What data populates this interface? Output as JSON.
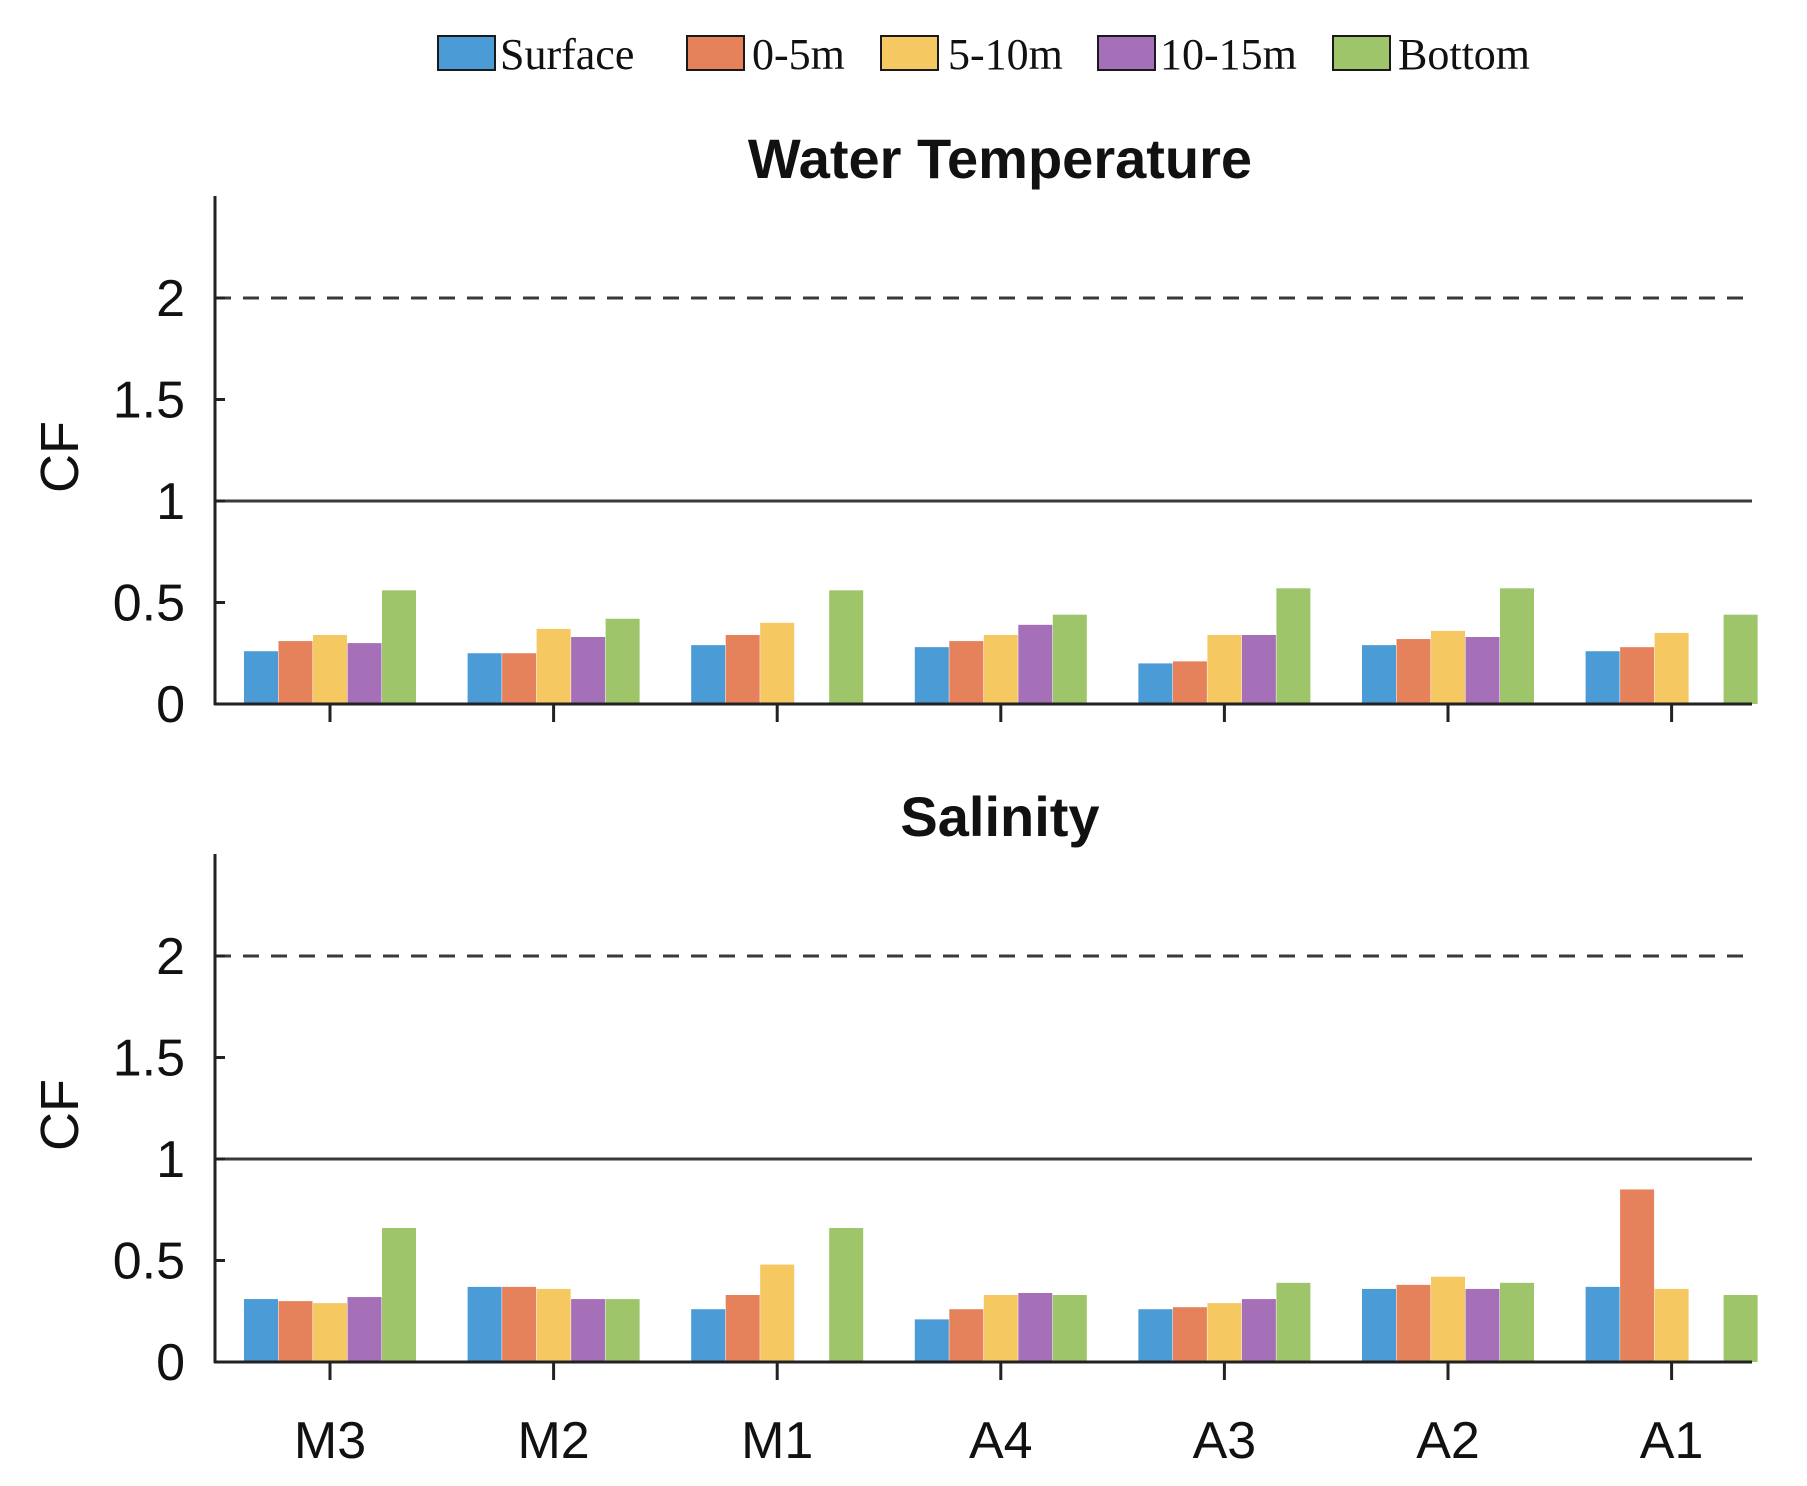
{
  "legend": [
    {
      "name": "Surface",
      "color": "#4a9bd6"
    },
    {
      "name": "0-5m",
      "color": "#e5825c"
    },
    {
      "name": "5-10m",
      "color": "#f5c862"
    },
    {
      "name": "10-15m",
      "color": "#a570b8"
    },
    {
      "name": "Bottom",
      "color": "#9fc56a"
    }
  ],
  "chart_data": [
    {
      "type": "bar",
      "title": "Water Temperature",
      "xlabel": "",
      "ylabel": "CF",
      "ylim": [
        0,
        2.5
      ],
      "yticks": [
        "0",
        "0.5",
        "1",
        "1.5",
        "2"
      ],
      "ytick_values": [
        0,
        0.5,
        1,
        1.5,
        2
      ],
      "reference_lines": [
        {
          "y": 1,
          "style": "solid"
        },
        {
          "y": 2,
          "style": "dashed"
        }
      ],
      "categories": [
        "M3",
        "M2",
        "M1",
        "A4",
        "A3",
        "A2",
        "A1"
      ],
      "show_tick_labels": false,
      "series": [
        {
          "name": "Surface",
          "values": [
            0.26,
            0.25,
            0.29,
            0.28,
            0.2,
            0.29,
            0.26
          ]
        },
        {
          "name": "0-5m",
          "values": [
            0.31,
            0.25,
            0.34,
            0.31,
            0.21,
            0.32,
            0.28
          ]
        },
        {
          "name": "5-10m",
          "values": [
            0.34,
            0.37,
            0.4,
            0.34,
            0.34,
            0.36,
            0.35
          ]
        },
        {
          "name": "10-15m",
          "values": [
            0.3,
            0.33,
            null,
            0.39,
            0.34,
            0.33,
            null
          ]
        },
        {
          "name": "Bottom",
          "values": [
            0.56,
            0.42,
            0.56,
            0.44,
            0.57,
            0.57,
            0.44
          ]
        }
      ]
    },
    {
      "type": "bar",
      "title": "Salinity",
      "xlabel": "",
      "ylabel": "CF",
      "ylim": [
        0,
        2.5
      ],
      "yticks": [
        "0",
        "0.5",
        "1",
        "1.5",
        "2"
      ],
      "ytick_values": [
        0,
        0.5,
        1,
        1.5,
        2
      ],
      "reference_lines": [
        {
          "y": 1,
          "style": "solid"
        },
        {
          "y": 2,
          "style": "dashed"
        }
      ],
      "categories": [
        "M3",
        "M2",
        "M1",
        "A4",
        "A3",
        "A2",
        "A1"
      ],
      "show_tick_labels": true,
      "series": [
        {
          "name": "Surface",
          "values": [
            0.31,
            0.37,
            0.26,
            0.21,
            0.26,
            0.36,
            0.37
          ]
        },
        {
          "name": "0-5m",
          "values": [
            0.3,
            0.37,
            0.33,
            0.26,
            0.27,
            0.38,
            0.85
          ]
        },
        {
          "name": "5-10m",
          "values": [
            0.29,
            0.36,
            0.48,
            0.33,
            0.29,
            0.42,
            0.36
          ]
        },
        {
          "name": "10-15m",
          "values": [
            0.32,
            0.31,
            null,
            0.34,
            0.31,
            0.36,
            null
          ]
        },
        {
          "name": "Bottom",
          "values": [
            0.66,
            0.31,
            0.66,
            0.33,
            0.39,
            0.39,
            0.33
          ]
        }
      ]
    }
  ]
}
